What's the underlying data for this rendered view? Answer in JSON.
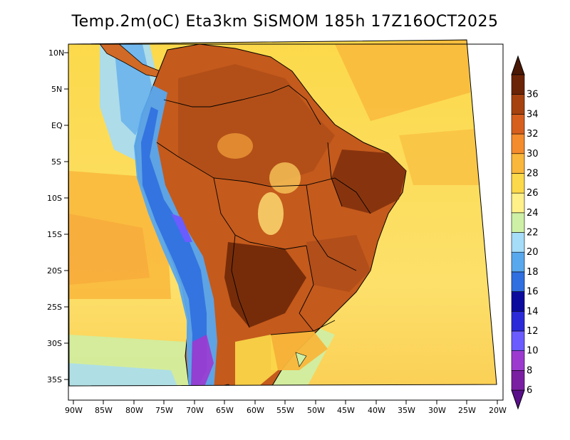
{
  "title": "Temp.2m(oC) Eta3km SiSMOM 185h 17Z16OCT2025",
  "lat_labels": [
    "10N",
    "5N",
    "EQ",
    "5S",
    "10S",
    "15S",
    "20S",
    "25S",
    "30S",
    "35S"
  ],
  "lon_labels": [
    "90W",
    "85W",
    "80W",
    "75W",
    "70W",
    "65W",
    "60W",
    "55W",
    "50W",
    "45W",
    "40W",
    "35W",
    "30W",
    "25W",
    "20W"
  ],
  "colorbar": {
    "levels": [
      "6",
      "8",
      "10",
      "12",
      "14",
      "16",
      "18",
      "20",
      "22",
      "24",
      "26",
      "28",
      "30",
      "32",
      "34",
      "36"
    ],
    "colors": [
      "#7a1fa2",
      "#9c3ad0",
      "#6a5cff",
      "#2a2ad8",
      "#0b0b9e",
      "#2f6fe0",
      "#58a8ee",
      "#a5dcf8",
      "#cdf0a6",
      "#fff08a",
      "#fcd94a",
      "#f9b73b",
      "#f48b2c",
      "#d65f1e",
      "#a6420f",
      "#6b2406"
    ]
  },
  "legend": {
    "below_color": "#5a0f8a",
    "above_color": "#4a1804"
  },
  "palette": {
    "ocean_warm": "#fbd24b",
    "ocean_cool": "#f9b73b",
    "ocean_cold": "#a5dcf8",
    "land_hot": "#c7521a",
    "land_hotter": "#8a3410",
    "highland": "#58a8ee",
    "border": "#000000"
  }
}
